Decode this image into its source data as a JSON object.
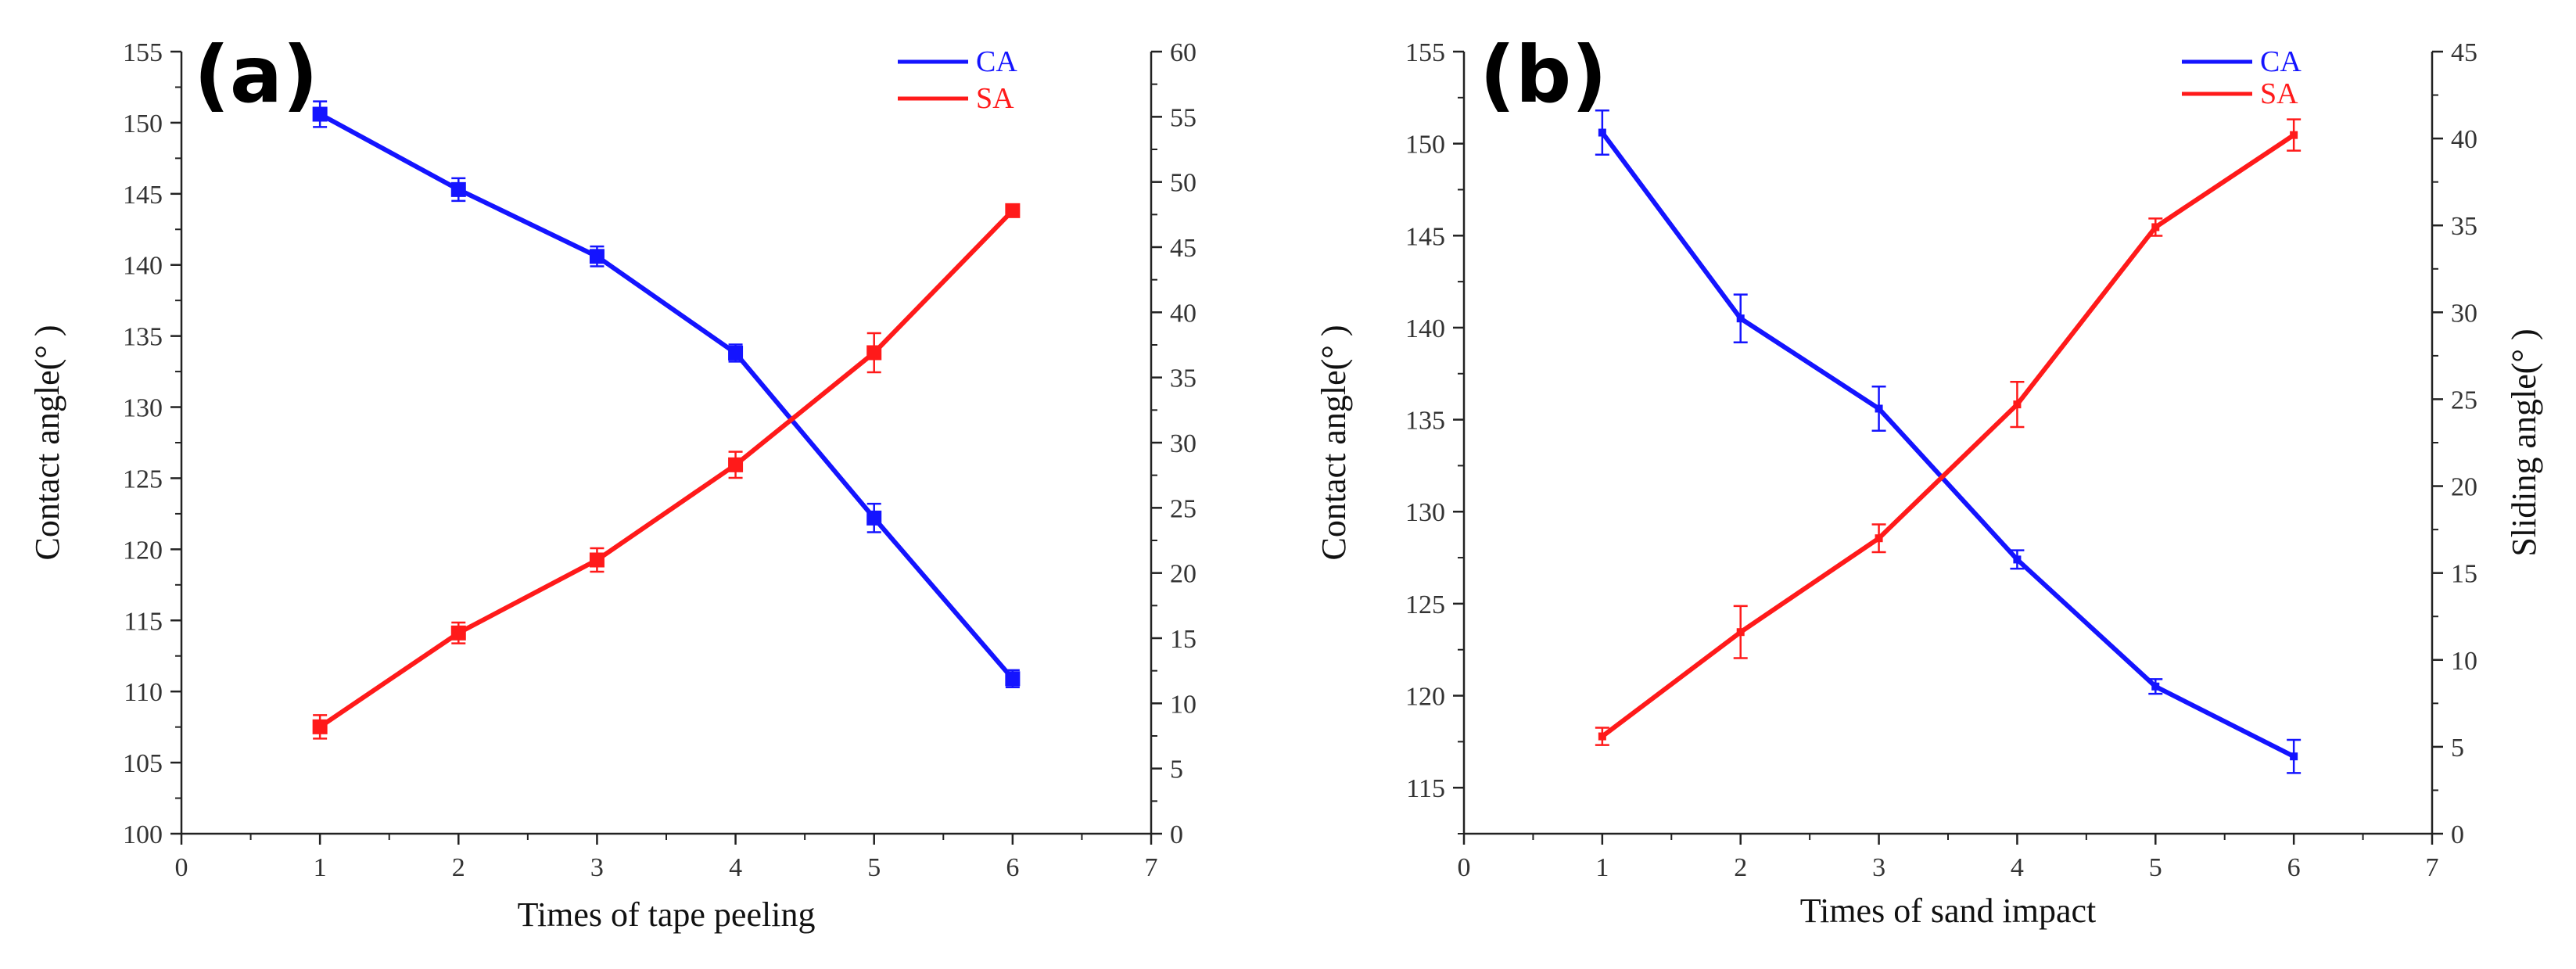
{
  "chart_data": [
    {
      "type": "line",
      "panel_label": "(a)",
      "xlabel": "Times of tape peeling",
      "ylabel": "Contact angle(° )",
      "y2label": "",
      "xlim": [
        0,
        7
      ],
      "ylim": [
        100,
        155
      ],
      "y2lim": [
        0,
        60
      ],
      "xticks": [
        "0",
        "1",
        "2",
        "3",
        "4",
        "5",
        "6",
        "7"
      ],
      "yticks": [
        "100",
        "105",
        "110",
        "115",
        "120",
        "125",
        "130",
        "135",
        "140",
        "145",
        "150",
        "155"
      ],
      "y2ticks": [
        "0",
        "5",
        "10",
        "15",
        "20",
        "25",
        "30",
        "35",
        "40",
        "45",
        "50",
        "55",
        "60"
      ],
      "legend_position": "top-right",
      "marker": "square-large",
      "series": [
        {
          "name": "CA",
          "axis": "left",
          "color": "#1414ff",
          "x": [
            1,
            2,
            3,
            4,
            5,
            6
          ],
          "values": [
            150.6,
            145.3,
            140.6,
            133.8,
            122.2,
            110.9
          ],
          "errors": [
            0.9,
            0.8,
            0.7,
            0.6,
            1.0,
            0.6
          ]
        },
        {
          "name": "SA",
          "axis": "right",
          "color": "#ff1a1a",
          "x": [
            1,
            2,
            3,
            4,
            5,
            6
          ],
          "values": [
            8.2,
            15.4,
            21.0,
            28.3,
            36.9,
            47.8
          ],
          "errors": [
            0.9,
            0.8,
            0.9,
            1.0,
            1.5,
            0.3
          ]
        }
      ]
    },
    {
      "type": "line",
      "panel_label": "(b)",
      "xlabel": "Times of sand impact",
      "ylabel": "Contact angle(° )",
      "y2label": "Sliding angle(° )",
      "xlim": [
        0,
        7
      ],
      "ylim": [
        112.5,
        155
      ],
      "y2lim": [
        0,
        45
      ],
      "xticks": [
        "0",
        "1",
        "2",
        "3",
        "4",
        "5",
        "6",
        "7"
      ],
      "yticks": [
        "115",
        "120",
        "125",
        "130",
        "135",
        "140",
        "145",
        "150",
        "155"
      ],
      "y2ticks": [
        "0",
        "5",
        "10",
        "15",
        "20",
        "25",
        "30",
        "35",
        "40",
        "45"
      ],
      "legend_position": "top-right",
      "marker": "square-small",
      "series": [
        {
          "name": "CA",
          "axis": "left",
          "color": "#1414ff",
          "x": [
            1,
            2,
            3,
            4,
            5,
            6
          ],
          "values": [
            150.6,
            140.5,
            135.6,
            127.4,
            120.5,
            116.7
          ],
          "errors": [
            1.2,
            1.3,
            1.2,
            0.5,
            0.4,
            0.9
          ]
        },
        {
          "name": "SA",
          "axis": "right",
          "color": "#ff1a1a",
          "x": [
            1,
            2,
            3,
            4,
            5,
            6
          ],
          "values": [
            5.6,
            11.6,
            17.0,
            24.7,
            34.9,
            40.2
          ],
          "errors": [
            0.5,
            1.5,
            0.8,
            1.3,
            0.5,
            0.9
          ]
        }
      ]
    }
  ]
}
